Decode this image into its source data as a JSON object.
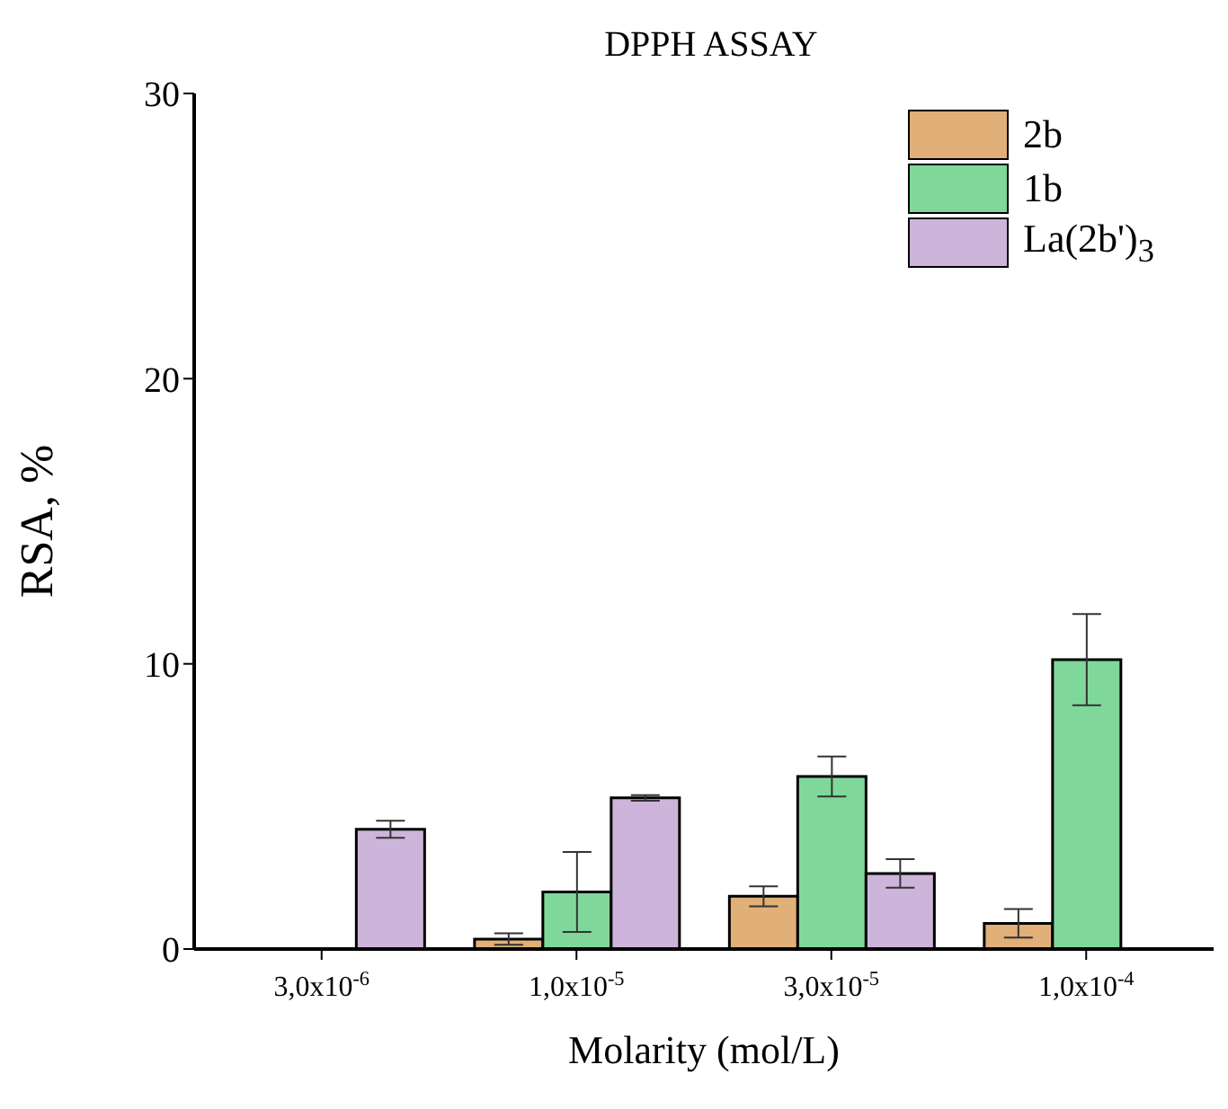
{
  "chart_data": {
    "type": "bar",
    "title": "DPPH ASSAY",
    "xlabel": "Molarity (mol/L)",
    "ylabel": "RSA, %",
    "categories": [
      "3,0x10$^{-6}$",
      "1,0x10$^{-5}$",
      "3,0x10$^{-5}$",
      "1,0x10$^{-4}$"
    ],
    "series": [
      {
        "name": "2b",
        "color": "#e0b078",
        "values": [
          null,
          0.35,
          1.85,
          0.9
        ],
        "errors": [
          null,
          0.2,
          0.35,
          0.5
        ]
      },
      {
        "name": "1b",
        "color": "#7fd89a",
        "values": [
          null,
          2.0,
          6.05,
          10.15
        ],
        "errors": [
          null,
          1.4,
          0.7,
          1.6
        ]
      },
      {
        "name": "La(2b')$_{3}$",
        "color": "#cdb4da",
        "values": [
          4.2,
          5.3,
          2.65,
          null
        ],
        "errors": [
          0.3,
          0.1,
          0.5,
          null
        ]
      }
    ],
    "ylim": [
      0,
      30
    ],
    "yticks": [
      0,
      10,
      20,
      30
    ],
    "legend": "top right"
  }
}
